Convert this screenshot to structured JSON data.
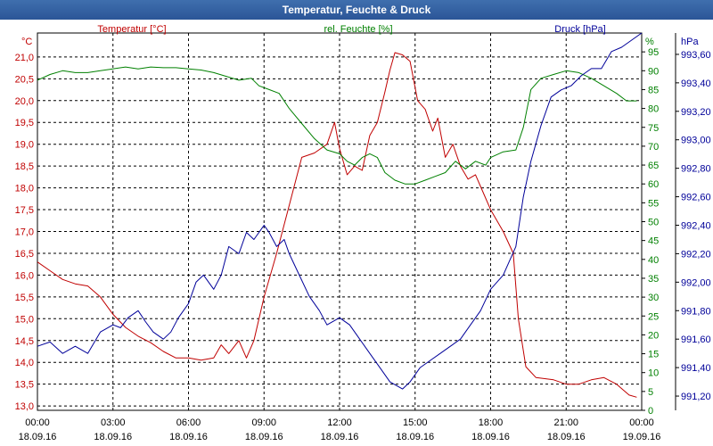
{
  "window": {
    "title": "Temperatur, Feuchte & Druck"
  },
  "chart_data": {
    "type": "line",
    "title": "Temperatur, Feuchte & Druck",
    "xlabel": "",
    "x_ticks": [
      {
        "time": "00:00",
        "date": "18.09.16"
      },
      {
        "time": "03:00",
        "date": "18.09.16"
      },
      {
        "time": "06:00",
        "date": "18.09.16"
      },
      {
        "time": "09:00",
        "date": "18.09.16"
      },
      {
        "time": "12:00",
        "date": "18.09.16"
      },
      {
        "time": "15:00",
        "date": "18.09.16"
      },
      {
        "time": "18:00",
        "date": "18.09.16"
      },
      {
        "time": "21:00",
        "date": "18.09.16"
      },
      {
        "time": "00:00",
        "date": "19.09.16"
      }
    ],
    "xlim_hours": [
      0,
      24
    ],
    "axes": {
      "temperature": {
        "label": "Temperatur [°C]",
        "unit": "°C",
        "color": "#c00000",
        "ylim": [
          12.9,
          21.55
        ],
        "ticks": [
          "13,0",
          "13,5",
          "14,0",
          "14,5",
          "15,0",
          "15,5",
          "16,0",
          "16,5",
          "17,0",
          "17,5",
          "18,0",
          "18,5",
          "19,0",
          "19,5",
          "20,0",
          "20,5",
          "21,0"
        ]
      },
      "humidity": {
        "label": "rel. Feuchte [%]",
        "unit": "%",
        "color": "#008000",
        "ylim": [
          0,
          100
        ],
        "ticks": [
          "0",
          "5",
          "10",
          "15",
          "20",
          "25",
          "30",
          "35",
          "40",
          "45",
          "50",
          "55",
          "60",
          "65",
          "70",
          "75",
          "80",
          "85",
          "90",
          "95"
        ]
      },
      "pressure": {
        "label": "Druck [hPa]",
        "unit": "hPa",
        "color": "#000099",
        "ylim": [
          991.1,
          993.75
        ],
        "ticks": [
          "991,20",
          "991,40",
          "991,60",
          "991,80",
          "992,00",
          "992,20",
          "992,40",
          "992,60",
          "992,80",
          "993,00",
          "993,20",
          "993,40",
          "993,60"
        ]
      }
    },
    "series": [
      {
        "name": "Temperatur [°C]",
        "axis": "temperature",
        "color": "#c00000",
        "points": [
          [
            0,
            16.3
          ],
          [
            0.5,
            16.1
          ],
          [
            1,
            15.9
          ],
          [
            1.5,
            15.8
          ],
          [
            2,
            15.75
          ],
          [
            2.5,
            15.5
          ],
          [
            3,
            15.1
          ],
          [
            3.5,
            14.8
          ],
          [
            4,
            14.6
          ],
          [
            4.5,
            14.45
          ],
          [
            5,
            14.25
          ],
          [
            5.5,
            14.1
          ],
          [
            6,
            14.1
          ],
          [
            6.5,
            14.05
          ],
          [
            7,
            14.1
          ],
          [
            7.3,
            14.4
          ],
          [
            7.6,
            14.2
          ],
          [
            8,
            14.5
          ],
          [
            8.3,
            14.1
          ],
          [
            8.6,
            14.5
          ],
          [
            9,
            15.5
          ],
          [
            9.5,
            16.5
          ],
          [
            10,
            17.6
          ],
          [
            10.5,
            18.7
          ],
          [
            11,
            18.8
          ],
          [
            11.5,
            19.0
          ],
          [
            11.8,
            19.5
          ],
          [
            12,
            18.9
          ],
          [
            12.3,
            18.3
          ],
          [
            12.6,
            18.5
          ],
          [
            12.9,
            18.4
          ],
          [
            13.2,
            19.2
          ],
          [
            13.5,
            19.5
          ],
          [
            13.8,
            20.2
          ],
          [
            14,
            20.7
          ],
          [
            14.2,
            21.1
          ],
          [
            14.5,
            21.05
          ],
          [
            14.8,
            20.9
          ],
          [
            15.1,
            20.0
          ],
          [
            15.4,
            19.8
          ],
          [
            15.7,
            19.3
          ],
          [
            15.9,
            19.6
          ],
          [
            16.2,
            18.7
          ],
          [
            16.5,
            19.0
          ],
          [
            16.8,
            18.5
          ],
          [
            17.1,
            18.2
          ],
          [
            17.4,
            18.3
          ],
          [
            17.7,
            17.9
          ],
          [
            18,
            17.5
          ],
          [
            18.5,
            17.0
          ],
          [
            18.9,
            16.5
          ],
          [
            19.1,
            15.0
          ],
          [
            19.4,
            13.9
          ],
          [
            19.8,
            13.65
          ],
          [
            20.5,
            13.6
          ],
          [
            21,
            13.5
          ],
          [
            21.5,
            13.5
          ],
          [
            22,
            13.6
          ],
          [
            22.5,
            13.65
          ],
          [
            23,
            13.5
          ],
          [
            23.5,
            13.25
          ],
          [
            23.8,
            13.2
          ]
        ]
      },
      {
        "name": "rel. Feuchte [%]",
        "axis": "humidity",
        "color": "#008000",
        "points": [
          [
            0,
            87.5
          ],
          [
            0.5,
            89
          ],
          [
            1,
            90
          ],
          [
            1.5,
            89.5
          ],
          [
            2,
            89.5
          ],
          [
            2.5,
            90
          ],
          [
            3,
            90.5
          ],
          [
            3.5,
            91
          ],
          [
            4,
            90.5
          ],
          [
            4.5,
            91
          ],
          [
            5,
            90.8
          ],
          [
            5.5,
            90.8
          ],
          [
            6,
            90.5
          ],
          [
            6.5,
            90.2
          ],
          [
            7,
            89.5
          ],
          [
            7.5,
            88.5
          ],
          [
            8,
            87.5
          ],
          [
            8.5,
            88
          ],
          [
            8.8,
            86
          ],
          [
            9.2,
            85
          ],
          [
            9.6,
            84
          ],
          [
            10,
            80
          ],
          [
            10.5,
            76
          ],
          [
            11,
            72
          ],
          [
            11.5,
            69
          ],
          [
            12,
            68
          ],
          [
            12.3,
            66
          ],
          [
            12.6,
            65
          ],
          [
            12.9,
            67
          ],
          [
            13.2,
            68
          ],
          [
            13.5,
            67
          ],
          [
            13.8,
            63
          ],
          [
            14.2,
            61
          ],
          [
            14.6,
            60
          ],
          [
            15,
            60
          ],
          [
            15.4,
            61
          ],
          [
            15.8,
            62
          ],
          [
            16.2,
            63
          ],
          [
            16.6,
            66
          ],
          [
            17,
            64
          ],
          [
            17.4,
            66
          ],
          [
            17.8,
            65
          ],
          [
            18,
            67
          ],
          [
            18.5,
            68.5
          ],
          [
            19,
            69
          ],
          [
            19.3,
            75
          ],
          [
            19.6,
            85
          ],
          [
            20,
            88
          ],
          [
            20.5,
            89
          ],
          [
            21,
            90
          ],
          [
            21.5,
            89.5
          ],
          [
            22,
            88
          ],
          [
            22.5,
            86
          ],
          [
            23,
            84
          ],
          [
            23.4,
            82
          ],
          [
            23.8,
            82
          ]
        ]
      },
      {
        "name": "Druck [hPa]",
        "axis": "pressure",
        "color": "#000099",
        "points": [
          [
            0,
            991.55
          ],
          [
            0.5,
            991.58
          ],
          [
            1,
            991.5
          ],
          [
            1.5,
            991.55
          ],
          [
            2,
            991.5
          ],
          [
            2.5,
            991.65
          ],
          [
            3,
            991.7
          ],
          [
            3.3,
            991.68
          ],
          [
            3.6,
            991.75
          ],
          [
            4,
            991.8
          ],
          [
            4.3,
            991.72
          ],
          [
            4.6,
            991.65
          ],
          [
            5,
            991.6
          ],
          [
            5.3,
            991.65
          ],
          [
            5.6,
            991.75
          ],
          [
            6,
            991.85
          ],
          [
            6.3,
            992.0
          ],
          [
            6.6,
            992.05
          ],
          [
            7,
            991.95
          ],
          [
            7.3,
            992.05
          ],
          [
            7.6,
            992.25
          ],
          [
            8,
            992.2
          ],
          [
            8.3,
            992.35
          ],
          [
            8.6,
            992.3
          ],
          [
            9,
            992.4
          ],
          [
            9.2,
            992.35
          ],
          [
            9.5,
            992.25
          ],
          [
            9.8,
            992.3
          ],
          [
            10,
            992.2
          ],
          [
            10.4,
            992.05
          ],
          [
            10.8,
            991.9
          ],
          [
            11.2,
            991.8
          ],
          [
            11.5,
            991.7
          ],
          [
            12,
            991.75
          ],
          [
            12.4,
            991.7
          ],
          [
            12.8,
            991.6
          ],
          [
            13.2,
            991.5
          ],
          [
            13.6,
            991.4
          ],
          [
            14,
            991.3
          ],
          [
            14.5,
            991.25
          ],
          [
            14.8,
            991.3
          ],
          [
            15.2,
            991.4
          ],
          [
            15.6,
            991.45
          ],
          [
            16,
            991.5
          ],
          [
            16.4,
            991.55
          ],
          [
            16.8,
            991.6
          ],
          [
            17.2,
            991.7
          ],
          [
            17.6,
            991.8
          ],
          [
            18,
            991.95
          ],
          [
            18.5,
            992.05
          ],
          [
            19,
            992.25
          ],
          [
            19.3,
            992.6
          ],
          [
            19.6,
            992.85
          ],
          [
            20,
            993.1
          ],
          [
            20.4,
            993.3
          ],
          [
            20.8,
            993.35
          ],
          [
            21.2,
            993.38
          ],
          [
            21.6,
            993.45
          ],
          [
            22,
            993.5
          ],
          [
            22.4,
            993.5
          ],
          [
            22.8,
            993.62
          ],
          [
            23.2,
            993.65
          ],
          [
            23.6,
            993.7
          ],
          [
            24,
            993.75
          ]
        ]
      }
    ]
  }
}
